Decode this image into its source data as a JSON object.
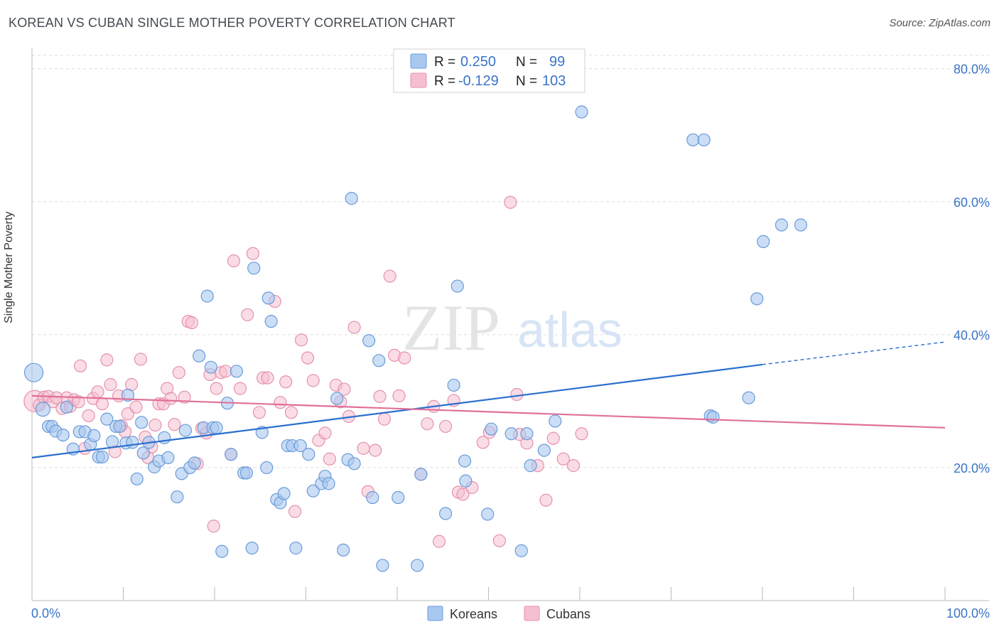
{
  "header": {
    "title": "KOREAN VS CUBAN SINGLE MOTHER POVERTY CORRELATION CHART",
    "source": "Source: ZipAtlas.com"
  },
  "watermark": {
    "zip": "ZIP",
    "atlas": "atlas"
  },
  "legend_top": {
    "rows": [
      {
        "r_label": "R =",
        "r_value": "0.250",
        "n_label": "N =",
        "n_value": "99"
      },
      {
        "r_label": "R =",
        "r_value": "-0.129",
        "n_label": "N =",
        "n_value": "103"
      }
    ]
  },
  "colors": {
    "korean_fill": "#a9c8f0",
    "korean_stroke": "#6a9bd8",
    "korean_line": "#2a6fce",
    "cuban_fill": "#f5bfd0",
    "cuban_stroke": "#e592ae",
    "cuban_line": "#e0709a",
    "value_text": "#3a74c8",
    "grid": "#dcdcdc"
  },
  "chart_data": {
    "type": "scatter",
    "title": "KOREAN VS CUBAN SINGLE MOTHER POVERTY CORRELATION CHART",
    "xlabel": "",
    "ylabel": "Single Mother Poverty",
    "xlim": [
      0,
      100
    ],
    "ylim": [
      0,
      82
    ],
    "x_tick_labels": [
      "0.0%",
      "100.0%"
    ],
    "y_ticks": [
      20,
      40,
      60,
      80
    ],
    "y_tick_labels": [
      "20.0%",
      "40.0%",
      "60.0%",
      "80.0%"
    ],
    "grid": true,
    "legend_position": "bottom-center",
    "series": [
      {
        "name": "Koreans",
        "r": 0.25,
        "n": 99,
        "trend": {
          "x0": 0,
          "y0": 21.5,
          "x1": 80,
          "y1": 35.5,
          "dashed_to_x": 100,
          "dashed_to_y": 38.9
        },
        "points": [
          [
            0.2,
            34.3
          ],
          [
            1.2,
            28.8
          ],
          [
            1.8,
            26.2
          ],
          [
            2.2,
            26.2
          ],
          [
            2.6,
            25.5
          ],
          [
            3.4,
            24.9
          ],
          [
            3.8,
            29.1
          ],
          [
            4.5,
            22.8
          ],
          [
            5.2,
            25.4
          ],
          [
            5.8,
            25.4
          ],
          [
            6.4,
            23.5
          ],
          [
            6.8,
            24.8
          ],
          [
            7.3,
            21.6
          ],
          [
            7.7,
            21.6
          ],
          [
            8.2,
            27.3
          ],
          [
            8.8,
            23.9
          ],
          [
            9.2,
            26.2
          ],
          [
            9.6,
            26.2
          ],
          [
            10.3,
            23.7
          ],
          [
            10.5,
            30.9
          ],
          [
            11,
            23.8
          ],
          [
            11.5,
            18.3
          ],
          [
            12,
            26.8
          ],
          [
            12.2,
            22.2
          ],
          [
            12.8,
            23.8
          ],
          [
            13.4,
            20.1
          ],
          [
            13.9,
            21
          ],
          [
            14.5,
            24.5
          ],
          [
            14.9,
            21.5
          ],
          [
            15.9,
            15.6
          ],
          [
            16.4,
            19.1
          ],
          [
            16.8,
            25.6
          ],
          [
            17.3,
            20
          ],
          [
            17.8,
            20.7
          ],
          [
            18.3,
            36.8
          ],
          [
            18.8,
            26
          ],
          [
            19.2,
            45.8
          ],
          [
            19.6,
            35.1
          ],
          [
            19.8,
            26
          ],
          [
            20.2,
            26
          ],
          [
            20.8,
            7.4
          ],
          [
            21.4,
            29.7
          ],
          [
            21.8,
            22
          ],
          [
            22.4,
            34.5
          ],
          [
            23.2,
            19.2
          ],
          [
            23.5,
            19.2
          ],
          [
            24.1,
            7.9
          ],
          [
            24.3,
            50
          ],
          [
            25.2,
            25.3
          ],
          [
            25.7,
            20
          ],
          [
            25.9,
            45.5
          ],
          [
            26.2,
            42
          ],
          [
            26.8,
            15.2
          ],
          [
            27.2,
            14.7
          ],
          [
            27.6,
            16.1
          ],
          [
            28,
            23.3
          ],
          [
            28.5,
            23.3
          ],
          [
            28.9,
            7.9
          ],
          [
            29.4,
            23.3
          ],
          [
            30.3,
            22
          ],
          [
            30.8,
            16.5
          ],
          [
            31.7,
            17.6
          ],
          [
            32.1,
            18.7
          ],
          [
            32.5,
            17.6
          ],
          [
            33.4,
            30.4
          ],
          [
            34.1,
            7.6
          ],
          [
            34.6,
            21.2
          ],
          [
            35,
            60.5
          ],
          [
            35.3,
            20.6
          ],
          [
            36.9,
            39.1
          ],
          [
            37.3,
            15.5
          ],
          [
            38,
            36.1
          ],
          [
            38.4,
            5.3
          ],
          [
            40.1,
            15.5
          ],
          [
            42.2,
            5.3
          ],
          [
            42.6,
            19
          ],
          [
            45.3,
            13.1
          ],
          [
            46.2,
            32.4
          ],
          [
            46.6,
            47.3
          ],
          [
            47.4,
            21
          ],
          [
            47.5,
            18
          ],
          [
            49.9,
            13
          ],
          [
            50.3,
            25.8
          ],
          [
            52.5,
            25.1
          ],
          [
            53.6,
            7.5
          ],
          [
            54.2,
            25.1
          ],
          [
            54.6,
            20.3
          ],
          [
            56.1,
            22.6
          ],
          [
            57.3,
            27
          ],
          [
            60.2,
            73.5
          ],
          [
            72.4,
            69.3
          ],
          [
            73.6,
            69.3
          ],
          [
            74.3,
            27.8
          ],
          [
            74.6,
            27.6
          ],
          [
            78.5,
            30.5
          ],
          [
            79.4,
            45.4
          ],
          [
            82.1,
            56.5
          ],
          [
            84.2,
            56.5
          ],
          [
            80.1,
            54
          ]
        ]
      },
      {
        "name": "Cubans",
        "r": -0.129,
        "n": 103,
        "trend": {
          "x0": 0,
          "y0": 30.8,
          "x1": 100,
          "y1": 26.0
        },
        "points": [
          [
            0.3,
            30
          ],
          [
            0.8,
            29.4
          ],
          [
            1.3,
            30.6
          ],
          [
            1.8,
            30.7
          ],
          [
            2.3,
            29.9
          ],
          [
            2.7,
            30.5
          ],
          [
            3.3,
            28.9
          ],
          [
            3.8,
            30.5
          ],
          [
            4.2,
            29.2
          ],
          [
            4.6,
            30.2
          ],
          [
            5.1,
            29.9
          ],
          [
            5.3,
            35.3
          ],
          [
            5.8,
            22.9
          ],
          [
            6.2,
            27.8
          ],
          [
            6.7,
            30.4
          ],
          [
            7.2,
            31.4
          ],
          [
            7.7,
            29.6
          ],
          [
            8.2,
            36.2
          ],
          [
            8.6,
            32.5
          ],
          [
            9.1,
            22.4
          ],
          [
            9.5,
            30.8
          ],
          [
            9.8,
            26.3
          ],
          [
            10.2,
            25.4
          ],
          [
            10.5,
            28.1
          ],
          [
            10.9,
            32.5
          ],
          [
            11.4,
            29.1
          ],
          [
            11.9,
            36.3
          ],
          [
            12.4,
            24.6
          ],
          [
            12.7,
            21.5
          ],
          [
            13.1,
            23.1
          ],
          [
            13.5,
            26.4
          ],
          [
            13.9,
            29.6
          ],
          [
            14.4,
            29.6
          ],
          [
            14.8,
            31.9
          ],
          [
            15.2,
            30.4
          ],
          [
            15.6,
            26.5
          ],
          [
            16.1,
            34.3
          ],
          [
            16.7,
            30.6
          ],
          [
            17.1,
            42
          ],
          [
            17.5,
            41.8
          ],
          [
            18.1,
            20.6
          ],
          [
            18.6,
            25.9
          ],
          [
            19.1,
            25.2
          ],
          [
            19.5,
            34
          ],
          [
            19.9,
            11.2
          ],
          [
            20.2,
            31.9
          ],
          [
            20.7,
            34.3
          ],
          [
            21.2,
            34.5
          ],
          [
            21.8,
            22
          ],
          [
            22.1,
            51.1
          ],
          [
            22.8,
            31.9
          ],
          [
            23.6,
            43
          ],
          [
            24.2,
            52.2
          ],
          [
            24.9,
            28.3
          ],
          [
            25.3,
            33.5
          ],
          [
            25.8,
            33.5
          ],
          [
            26.6,
            45
          ],
          [
            27.2,
            29.8
          ],
          [
            27.8,
            32.9
          ],
          [
            28.4,
            28.3
          ],
          [
            28.8,
            13.4
          ],
          [
            29.5,
            39.2
          ],
          [
            30.2,
            36.5
          ],
          [
            30.8,
            33.1
          ],
          [
            31.4,
            24.1
          ],
          [
            32.1,
            25.2
          ],
          [
            32.6,
            21.3
          ],
          [
            33.3,
            32.4
          ],
          [
            33.8,
            29.9
          ],
          [
            34.2,
            31.8
          ],
          [
            34.7,
            27.7
          ],
          [
            35.3,
            41.1
          ],
          [
            36.3,
            22.9
          ],
          [
            36.8,
            16.4
          ],
          [
            37.6,
            22.6
          ],
          [
            38.1,
            30.7
          ],
          [
            38.6,
            27.3
          ],
          [
            39.2,
            48.8
          ],
          [
            39.7,
            36.9
          ],
          [
            40.2,
            30.8
          ],
          [
            40.8,
            36.5
          ],
          [
            42.6,
            19
          ],
          [
            43.3,
            26.6
          ],
          [
            44,
            29.2
          ],
          [
            44.6,
            8.9
          ],
          [
            45.3,
            26.2
          ],
          [
            46.2,
            30.1
          ],
          [
            46.7,
            16.3
          ],
          [
            47.2,
            16
          ],
          [
            48.2,
            17
          ],
          [
            49.4,
            23.8
          ],
          [
            50.1,
            25.3
          ],
          [
            51.2,
            9
          ],
          [
            52.4,
            59.9
          ],
          [
            53.1,
            31
          ],
          [
            53.4,
            25
          ],
          [
            54.2,
            23.7
          ],
          [
            55.4,
            20.3
          ],
          [
            56.3,
            15.1
          ],
          [
            57.1,
            24.4
          ],
          [
            58.2,
            21.3
          ],
          [
            59.3,
            20.3
          ],
          [
            60.2,
            25.1
          ]
        ]
      }
    ]
  },
  "legend_bottom": {
    "items": [
      {
        "label": "Koreans"
      },
      {
        "label": "Cubans"
      }
    ]
  }
}
